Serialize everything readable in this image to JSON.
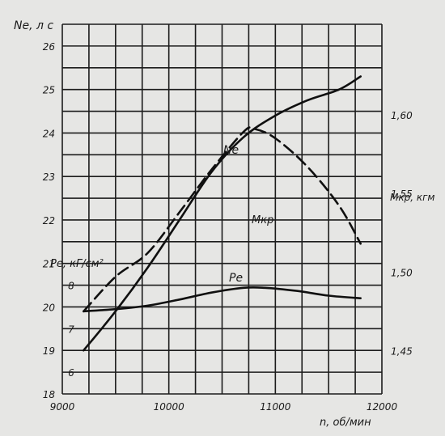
{
  "chart_data": {
    "type": "line",
    "xlabel": "n, об/мин",
    "x_ticks": [
      9000,
      10000,
      11000,
      12000
    ],
    "xlim": [
      9000,
      12000
    ],
    "axes": {
      "ne": {
        "label": "Ne, л с",
        "ylim": [
          18,
          26.5
        ],
        "ticks": [
          18,
          19,
          20,
          21,
          22,
          23,
          24,
          25,
          26
        ]
      },
      "pe": {
        "label": "Pe, кГ/см²",
        "ticks": [
          6,
          7,
          8
        ]
      },
      "mkr": {
        "label": "Mкр, кгм",
        "ticks": [
          "1,45",
          "1,50",
          "1,55",
          "1,60"
        ],
        "tick_values": [
          1.45,
          1.5,
          1.55,
          1.6
        ],
        "ylim": [
          1.4225,
          1.6575
        ]
      }
    },
    "series": [
      {
        "name": "Ne",
        "axis": "ne",
        "style": "solid",
        "x": [
          9200,
          9500,
          9800,
          10100,
          10400,
          10700,
          11000,
          11300,
          11600,
          11800
        ],
        "y": [
          19.0,
          19.9,
          20.9,
          22.0,
          23.1,
          23.9,
          24.4,
          24.75,
          25.0,
          25.3
        ]
      },
      {
        "name": "Mкр",
        "axis": "mkr",
        "style": "dashed",
        "x": [
          9200,
          9500,
          9800,
          10100,
          10400,
          10700,
          10800,
          11000,
          11300,
          11600,
          11800
        ],
        "y": [
          1.475,
          1.497,
          1.512,
          1.538,
          1.565,
          1.589,
          1.591,
          1.585,
          1.567,
          1.542,
          1.518
        ]
      },
      {
        "name": "Pe",
        "axis": "ne",
        "style": "solid",
        "x": [
          9200,
          9500,
          9800,
          10100,
          10400,
          10700,
          10900,
          11200,
          11500,
          11800
        ],
        "y": [
          19.9,
          19.95,
          20.03,
          20.17,
          20.33,
          20.44,
          20.44,
          20.37,
          20.26,
          20.2
        ]
      }
    ],
    "grid": true
  }
}
